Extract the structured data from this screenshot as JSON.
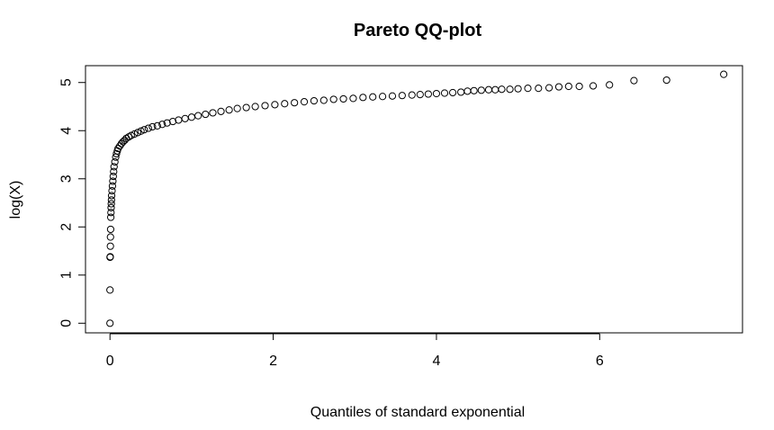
{
  "chart_data": {
    "type": "scatter",
    "title": "Pareto QQ-plot",
    "xlabel": "Quantiles of standard exponential",
    "ylabel": "log(X)",
    "xlim": [
      -0.3,
      7.75
    ],
    "ylim": [
      -0.2,
      5.35
    ],
    "x_ticks": [
      0,
      2,
      4,
      6
    ],
    "x_tick_labels": [
      "0",
      "2",
      "4",
      "6"
    ],
    "y_ticks": [
      0,
      1,
      2,
      3,
      4,
      5
    ],
    "y_tick_labels": [
      "0",
      "1",
      "2",
      "3",
      "4",
      "5"
    ],
    "grid": false,
    "marker": "open-circle",
    "marker_color": "#000000",
    "points": [
      [
        0.0,
        0.0
      ],
      [
        0.0,
        0.69
      ],
      [
        0.001,
        1.37
      ],
      [
        0.003,
        1.38
      ],
      [
        0.005,
        1.6
      ],
      [
        0.006,
        1.79
      ],
      [
        0.008,
        1.95
      ],
      [
        0.01,
        2.2
      ],
      [
        0.012,
        2.3
      ],
      [
        0.014,
        2.4
      ],
      [
        0.016,
        2.48
      ],
      [
        0.018,
        2.56
      ],
      [
        0.02,
        2.65
      ],
      [
        0.025,
        2.75
      ],
      [
        0.03,
        2.85
      ],
      [
        0.035,
        2.95
      ],
      [
        0.04,
        3.05
      ],
      [
        0.045,
        3.15
      ],
      [
        0.05,
        3.25
      ],
      [
        0.06,
        3.35
      ],
      [
        0.07,
        3.45
      ],
      [
        0.08,
        3.52
      ],
      [
        0.09,
        3.58
      ],
      [
        0.1,
        3.63
      ],
      [
        0.12,
        3.68
      ],
      [
        0.14,
        3.73
      ],
      [
        0.16,
        3.77
      ],
      [
        0.18,
        3.8
      ],
      [
        0.2,
        3.84
      ],
      [
        0.23,
        3.87
      ],
      [
        0.26,
        3.9
      ],
      [
        0.3,
        3.93
      ],
      [
        0.34,
        3.96
      ],
      [
        0.38,
        3.99
      ],
      [
        0.42,
        4.02
      ],
      [
        0.47,
        4.05
      ],
      [
        0.52,
        4.08
      ],
      [
        0.58,
        4.1
      ],
      [
        0.64,
        4.13
      ],
      [
        0.7,
        4.16
      ],
      [
        0.77,
        4.19
      ],
      [
        0.84,
        4.22
      ],
      [
        0.92,
        4.25
      ],
      [
        1.0,
        4.28
      ],
      [
        1.08,
        4.31
      ],
      [
        1.17,
        4.34
      ],
      [
        1.26,
        4.37
      ],
      [
        1.36,
        4.4
      ],
      [
        1.46,
        4.43
      ],
      [
        1.56,
        4.46
      ],
      [
        1.67,
        4.48
      ],
      [
        1.78,
        4.5
      ],
      [
        1.9,
        4.52
      ],
      [
        2.02,
        4.54
      ],
      [
        2.14,
        4.56
      ],
      [
        2.26,
        4.58
      ],
      [
        2.38,
        4.6
      ],
      [
        2.5,
        4.62
      ],
      [
        2.62,
        4.63
      ],
      [
        2.74,
        4.65
      ],
      [
        2.86,
        4.66
      ],
      [
        2.98,
        4.67
      ],
      [
        3.1,
        4.69
      ],
      [
        3.22,
        4.7
      ],
      [
        3.34,
        4.71
      ],
      [
        3.46,
        4.72
      ],
      [
        3.58,
        4.73
      ],
      [
        3.7,
        4.74
      ],
      [
        3.8,
        4.75
      ],
      [
        3.9,
        4.76
      ],
      [
        4.0,
        4.77
      ],
      [
        4.1,
        4.78
      ],
      [
        4.2,
        4.79
      ],
      [
        4.3,
        4.8
      ],
      [
        4.38,
        4.82
      ],
      [
        4.46,
        4.83
      ],
      [
        4.55,
        4.84
      ],
      [
        4.64,
        4.85
      ],
      [
        4.72,
        4.85
      ],
      [
        4.8,
        4.86
      ],
      [
        4.9,
        4.86
      ],
      [
        5.0,
        4.87
      ],
      [
        5.12,
        4.88
      ],
      [
        5.25,
        4.88
      ],
      [
        5.38,
        4.89
      ],
      [
        5.5,
        4.91
      ],
      [
        5.62,
        4.92
      ],
      [
        5.75,
        4.92
      ],
      [
        5.92,
        4.93
      ],
      [
        6.12,
        4.95
      ],
      [
        6.42,
        5.04
      ],
      [
        6.82,
        5.05
      ],
      [
        7.52,
        5.17
      ]
    ]
  }
}
